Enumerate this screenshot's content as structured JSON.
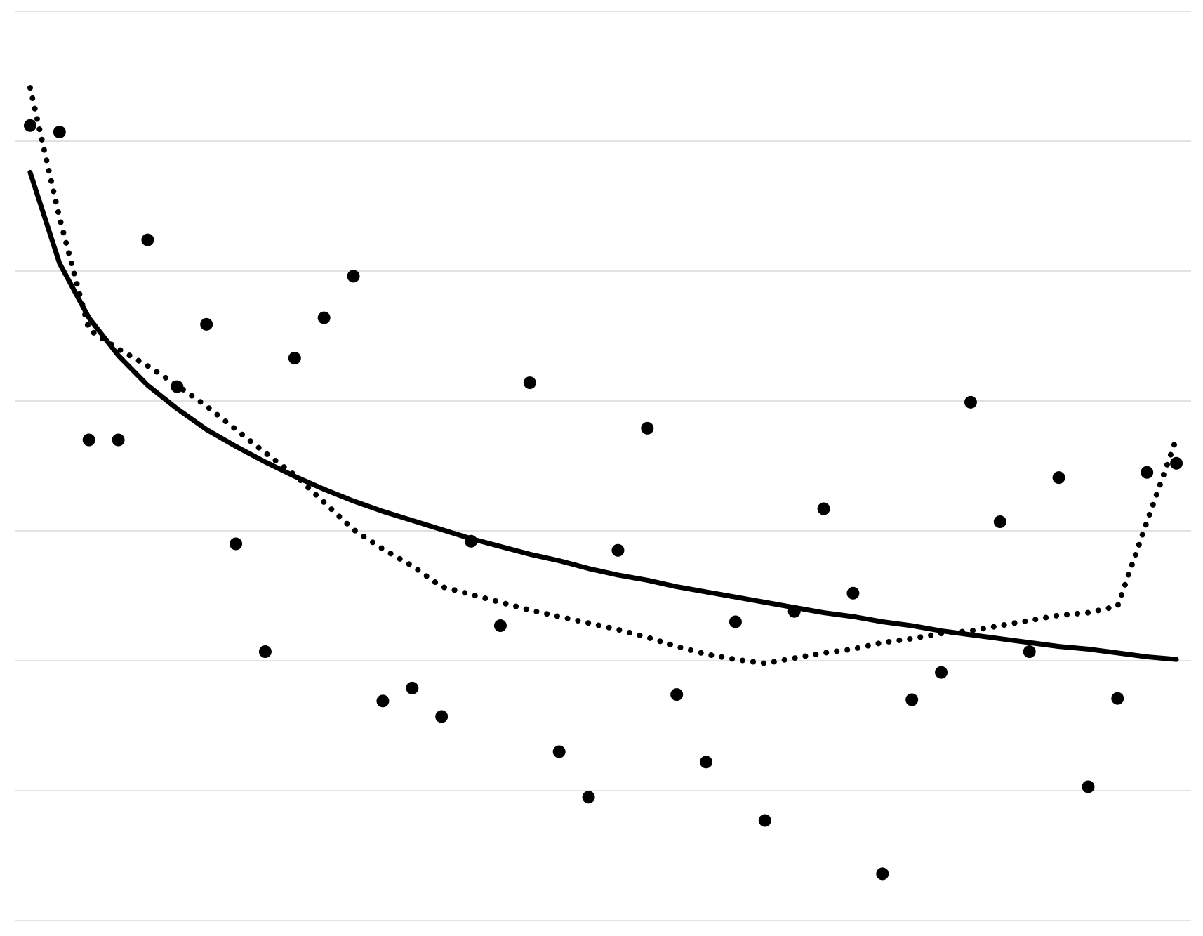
{
  "chart_data": {
    "type": "scatter",
    "x": [
      1,
      2,
      3,
      4,
      5,
      6,
      7,
      8,
      9,
      10,
      11,
      12,
      13,
      14,
      15,
      16,
      17,
      18,
      19,
      20,
      21,
      22,
      23,
      24,
      25,
      26,
      27,
      28,
      29,
      30,
      31,
      32,
      33,
      34,
      35,
      36,
      37,
      38,
      39,
      40
    ],
    "series": [
      {
        "type": "scatter",
        "color": "#000000",
        "values": [
          6.12,
          6.07,
          3.7,
          3.7,
          5.24,
          4.11,
          4.59,
          2.9,
          2.07,
          4.33,
          4.64,
          4.96,
          1.69,
          1.79,
          1.57,
          2.92,
          2.27,
          4.14,
          1.3,
          0.95,
          2.85,
          3.79,
          1.74,
          1.22,
          2.3,
          0.77,
          2.38,
          3.17,
          2.52,
          0.36,
          1.7,
          1.91,
          3.99,
          3.07,
          2.07,
          3.41,
          1.03,
          1.71,
          3.45,
          3.52
        ]
      },
      {
        "type": "line",
        "style": "solid",
        "color": "#000000",
        "values": [
          5.76,
          5.06,
          4.64,
          4.35,
          4.12,
          3.94,
          3.78,
          3.65,
          3.53,
          3.42,
          3.32,
          3.23,
          3.15,
          3.08,
          3.01,
          2.94,
          2.88,
          2.82,
          2.77,
          2.71,
          2.66,
          2.62,
          2.57,
          2.53,
          2.49,
          2.45,
          2.41,
          2.37,
          2.34,
          2.3,
          2.27,
          2.23,
          2.2,
          2.17,
          2.14,
          2.11,
          2.09,
          2.06,
          2.03,
          2.01
        ]
      },
      {
        "type": "line",
        "style": "dotted",
        "color": "#000000",
        "values": [
          6.41,
          5.41,
          4.55,
          4.4,
          4.27,
          4.12,
          3.96,
          3.78,
          3.6,
          3.43,
          3.22,
          3.01,
          2.86,
          2.73,
          2.57,
          2.51,
          2.45,
          2.39,
          2.34,
          2.29,
          2.24,
          2.18,
          2.11,
          2.05,
          2.01,
          1.98,
          2.02,
          2.06,
          2.09,
          2.14,
          2.17,
          2.21,
          2.23,
          2.27,
          2.31,
          2.35,
          2.37,
          2.42,
          3.07,
          3.71
        ]
      }
    ],
    "xlim": [
      0.5,
      40.5
    ],
    "ylim": [
      0,
      7
    ],
    "yticks": [
      0,
      1,
      2,
      3,
      4,
      5,
      6,
      7
    ],
    "grid": true,
    "grid_color": "#d9d9d9"
  }
}
